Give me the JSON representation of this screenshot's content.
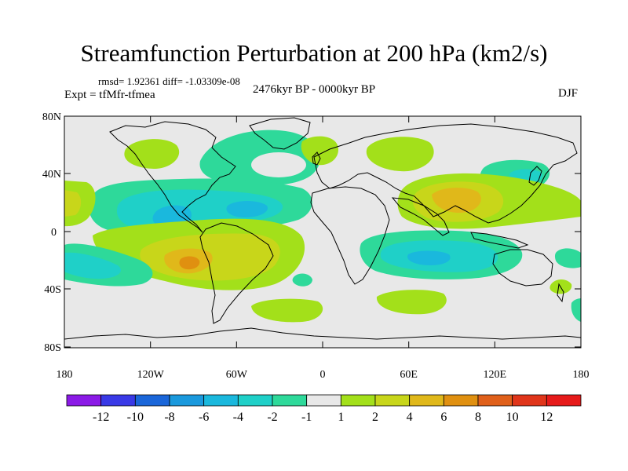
{
  "title": "Streamfunction Perturbation at 200 hPa (km2/s)",
  "stats": "rmsd= 1.92361  diff= -1.03309e-08",
  "subtitle": "2476kyr BP - 0000kyr BP",
  "experiment": "Expt = tfMfr-tfmea",
  "season": "DJF",
  "lat_labels": [
    "80N",
    "40N",
    "0",
    "40S",
    "80S"
  ],
  "lon_labels": [
    "180",
    "120W",
    "60W",
    "0",
    "60E",
    "120E",
    "180"
  ],
  "colorbar": {
    "labels": [
      "-12",
      "-10",
      "-8",
      "-6",
      "-4",
      "-2",
      "-1",
      "1",
      "2",
      "4",
      "6",
      "8",
      "10",
      "12"
    ],
    "colors": [
      "#8b1ae6",
      "#3939e6",
      "#1a66d9",
      "#1a99dd",
      "#1ab8dd",
      "#1fd0c8",
      "#2ed99a",
      "#e8e8e8",
      "#a3e01a",
      "#c8d61a",
      "#e0b81a",
      "#e09010",
      "#e0601a",
      "#e0351a",
      "#e61a1a"
    ]
  },
  "colors": {
    "background": "#e8e8e8",
    "coastline": "#000000"
  }
}
